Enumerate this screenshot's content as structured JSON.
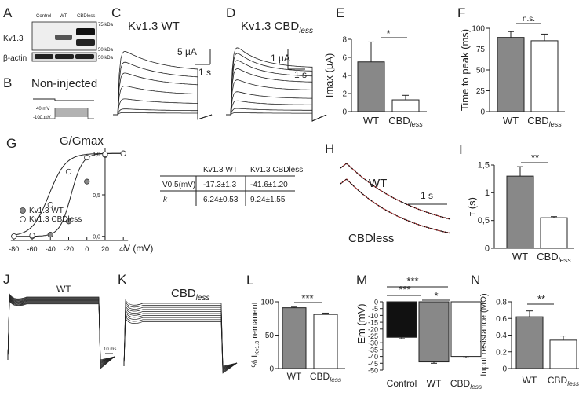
{
  "panels": {
    "A": {
      "letter": "A",
      "col_labels": [
        "Control",
        "WT",
        "CBDless"
      ],
      "row_labels": [
        "Kv1.3",
        "β-actin"
      ],
      "markers": [
        "75 kDa",
        "50 kDa",
        "50 kDa"
      ]
    },
    "B": {
      "letter": "B",
      "title": "Non-injected",
      "protocol": [
        "40 mV",
        "-100 mV"
      ]
    },
    "C": {
      "letter": "C",
      "title": "Kv1.3 WT",
      "scale_y": "5 µA",
      "scale_x": "1 s"
    },
    "D": {
      "letter": "D",
      "title_main": "Kv1.3 CBD",
      "title_sub": "less",
      "scale_y": "1 µA",
      "scale_x": "1 s"
    },
    "F": {
      "letter": "F",
      "ns": "n.s."
    },
    "E": {
      "letter": "E",
      "sig": "*"
    },
    "G": {
      "letter": "G",
      "title": "G/Gmax",
      "xlabel": "V (mV)",
      "legend": [
        "Kv1.3 WT",
        "Kv1.3 CBDless"
      ],
      "table": {
        "col_headers": [
          "Kv1.3 WT",
          "Kv1.3 CBDless"
        ],
        "row_headers": [
          "V0.5(mV)",
          "k"
        ],
        "rows": [
          [
            "-17.3±1.3",
            "-41.6±1.20"
          ],
          [
            "6.24±0.53",
            "9.24±1.55"
          ]
        ]
      }
    },
    "H": {
      "letter": "H",
      "labels": [
        "WT",
        "CBDless"
      ],
      "scale_x": "1 s"
    },
    "I": {
      "letter": "I",
      "sig": "**"
    },
    "J": {
      "letter": "J",
      "title": "WT",
      "scale": "10 ms"
    },
    "K": {
      "letter": "K",
      "title_main": "CBD",
      "title_sub": "less"
    },
    "L": {
      "letter": "L",
      "sig": "***"
    },
    "M": {
      "letter": "M",
      "sig": [
        "***",
        "***",
        "*"
      ]
    },
    "N": {
      "letter": "N",
      "sig": "**"
    }
  },
  "chart_data": [
    {
      "type": "bar",
      "panel": "E",
      "categories": [
        "WT",
        "CBDless"
      ],
      "values": [
        5.5,
        1.3
      ],
      "errors": [
        2.2,
        0.5
      ],
      "ylabel": "Imax (µA)",
      "ylim": [
        0,
        8
      ],
      "yticks": [
        0,
        2,
        4,
        6,
        8
      ],
      "fills": [
        "#888888",
        "#ffffff"
      ]
    },
    {
      "type": "bar",
      "panel": "F",
      "categories": [
        "WT",
        "CBDless"
      ],
      "values": [
        89,
        85
      ],
      "errors": [
        7,
        8
      ],
      "ylabel": "Time to peak (ms)",
      "ylim": [
        0,
        100
      ],
      "yticks": [
        0,
        25,
        50,
        75,
        100
      ],
      "fills": [
        "#888888",
        "#ffffff"
      ]
    },
    {
      "type": "bar",
      "panel": "I",
      "categories": [
        "WT",
        "CBDless"
      ],
      "values": [
        1.3,
        0.55
      ],
      "errors": [
        0.17,
        0.02
      ],
      "ylabel": "τ (s)",
      "ylim": [
        0,
        1.5
      ],
      "yticks": [
        0,
        0.5,
        1,
        1.5
      ],
      "ytick_labels": [
        "0",
        "0,5",
        "1",
        "1,5"
      ],
      "fills": [
        "#888888",
        "#ffffff"
      ]
    },
    {
      "type": "bar",
      "panel": "L",
      "categories": [
        "WT",
        "CBDless"
      ],
      "values": [
        91,
        81
      ],
      "errors": [
        1,
        2
      ],
      "ylabel": "% IKv1.3 remanent",
      "ylim": [
        0,
        100
      ],
      "yticks": [
        0,
        50,
        100
      ],
      "fills": [
        "#888888",
        "#ffffff"
      ]
    },
    {
      "type": "bar",
      "panel": "M",
      "categories": [
        "Control",
        "WT",
        "CBDless"
      ],
      "values": [
        -26,
        -44,
        -40
      ],
      "errors": [
        1,
        1,
        1
      ],
      "ylabel": "Em (mV)",
      "ylim": [
        -50,
        0
      ],
      "yticks": [
        0,
        -5,
        -10,
        -15,
        -20,
        -25,
        -30,
        -35,
        -40,
        -45,
        -50
      ],
      "fills": [
        "#111111",
        "#888888",
        "#ffffff"
      ]
    },
    {
      "type": "bar",
      "panel": "N",
      "categories": [
        "WT",
        "CBDless"
      ],
      "values": [
        0.62,
        0.34
      ],
      "errors": [
        0.07,
        0.05
      ],
      "ylabel": "Input resistance (MΩ)",
      "ylim": [
        0,
        0.8
      ],
      "yticks": [
        0,
        0.2,
        0.4,
        0.6,
        0.8
      ],
      "fills": [
        "#888888",
        "#ffffff"
      ]
    },
    {
      "type": "scatter",
      "panel": "G",
      "xlim": [
        -85,
        45
      ],
      "ylim": [
        -0.05,
        1.05
      ],
      "xticks": [
        -80,
        -60,
        -40,
        -20,
        0,
        20,
        40
      ],
      "yticks": [
        0,
        0.5,
        1
      ],
      "ytick_labels": [
        "0,0",
        "0,5",
        "1,0"
      ],
      "series": [
        {
          "name": "Kv1.3 WT",
          "x": [
            -80,
            -60,
            -40,
            -20,
            0,
            20,
            40
          ],
          "y": [
            0,
            0,
            0.02,
            0.18,
            0.66,
            0.98,
            1.0
          ],
          "v_half": -17.3,
          "k": 6.24
        },
        {
          "name": "Kv1.3 CBDless",
          "x": [
            -80,
            -60,
            -40,
            -20,
            0,
            20,
            40
          ],
          "y": [
            0,
            0.01,
            0.38,
            0.78,
            0.95,
            0.99,
            1.0
          ],
          "v_half": -41.6,
          "k": 9.24
        }
      ]
    }
  ]
}
